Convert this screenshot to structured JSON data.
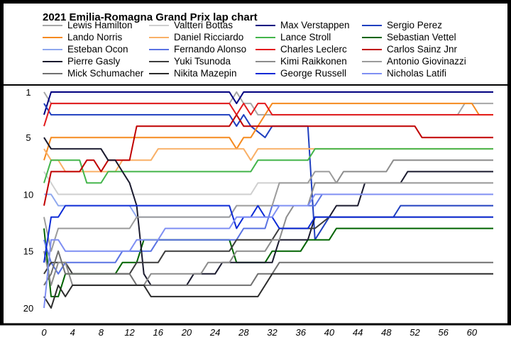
{
  "chart_data": {
    "type": "line",
    "title": "2021 Emilia-Romagna Grand Prix lap chart",
    "xlabel": "",
    "ylabel": "",
    "xlim": [
      0,
      63
    ],
    "ylim": [
      20,
      1
    ],
    "x_ticks": [
      0,
      4,
      8,
      12,
      16,
      20,
      24,
      28,
      32,
      36,
      40,
      44,
      48,
      52,
      56,
      60
    ],
    "y_ticks": [
      1,
      5,
      10,
      15,
      20
    ],
    "legend_placement": "top",
    "grid": false,
    "series": [
      {
        "name": "Lewis Hamilton",
        "color": "#a6a6a6",
        "points": [
          [
            0,
            1
          ],
          [
            1,
            2
          ],
          [
            26,
            2
          ],
          [
            27,
            1
          ],
          [
            28,
            2
          ],
          [
            29,
            2
          ],
          [
            30,
            3
          ],
          [
            58,
            3
          ],
          [
            59,
            2
          ],
          [
            63,
            2
          ]
        ]
      },
      {
        "name": "Valtteri Bottas",
        "color": "#cfcfcf",
        "points": [
          [
            0,
            8
          ],
          [
            1,
            9
          ],
          [
            2,
            10
          ],
          [
            29,
            10
          ],
          [
            30,
            9
          ],
          [
            63,
            9
          ]
        ]
      },
      {
        "name": "Max Verstappen",
        "color": "#000080",
        "points": [
          [
            0,
            3
          ],
          [
            1,
            1
          ],
          [
            26,
            1
          ],
          [
            27,
            2
          ],
          [
            28,
            1
          ],
          [
            63,
            1
          ]
        ]
      },
      {
        "name": "Sergio Perez",
        "color": "#1f3fbf",
        "points": [
          [
            0,
            2
          ],
          [
            1,
            3
          ],
          [
            26,
            3
          ],
          [
            27,
            4
          ],
          [
            28,
            3
          ],
          [
            29,
            4
          ],
          [
            31,
            5
          ],
          [
            32,
            4
          ],
          [
            37,
            4
          ],
          [
            38,
            14
          ],
          [
            40,
            12
          ],
          [
            49,
            12
          ],
          [
            50,
            11
          ],
          [
            63,
            11
          ]
        ]
      },
      {
        "name": "Lando Norris",
        "color": "#f58a1f",
        "points": [
          [
            0,
            7
          ],
          [
            1,
            5
          ],
          [
            26,
            5
          ],
          [
            27,
            6
          ],
          [
            28,
            5
          ],
          [
            29,
            5
          ],
          [
            30,
            4
          ],
          [
            31,
            3
          ],
          [
            32,
            2
          ],
          [
            60,
            2
          ],
          [
            61,
            3
          ],
          [
            63,
            3
          ]
        ]
      },
      {
        "name": "Daniel Ricciardo",
        "color": "#f9b067",
        "points": [
          [
            0,
            6
          ],
          [
            1,
            7
          ],
          [
            2,
            7
          ],
          [
            3,
            8
          ],
          [
            10,
            8
          ],
          [
            11,
            7
          ],
          [
            15,
            7
          ],
          [
            16,
            6
          ],
          [
            28,
            6
          ],
          [
            29,
            7
          ],
          [
            30,
            6
          ],
          [
            63,
            6
          ]
        ]
      },
      {
        "name": "Lance Stroll",
        "color": "#43b54a",
        "points": [
          [
            0,
            9
          ],
          [
            1,
            7
          ],
          [
            5,
            7
          ],
          [
            6,
            9
          ],
          [
            8,
            9
          ],
          [
            9,
            8
          ],
          [
            28,
            8
          ],
          [
            29,
            8
          ],
          [
            30,
            7
          ],
          [
            37,
            7
          ],
          [
            38,
            6
          ],
          [
            63,
            6
          ]
        ]
      },
      {
        "name": "Sebastian Vettel",
        "color": "#006400",
        "points": [
          [
            0,
            13
          ],
          [
            1,
            19
          ],
          [
            2,
            19
          ],
          [
            3,
            17
          ],
          [
            10,
            17
          ],
          [
            11,
            16
          ],
          [
            13,
            16
          ],
          [
            14,
            14
          ],
          [
            25,
            14
          ],
          [
            26,
            14
          ],
          [
            27,
            16
          ],
          [
            31,
            16
          ],
          [
            32,
            15
          ],
          [
            36,
            15
          ],
          [
            37,
            14
          ],
          [
            40,
            14
          ],
          [
            41,
            13
          ],
          [
            63,
            13
          ]
        ]
      },
      {
        "name": "Esteban Ocon",
        "color": "#8fa8ee",
        "points": [
          [
            0,
            10
          ],
          [
            1,
            10
          ],
          [
            2,
            11
          ],
          [
            12,
            11
          ],
          [
            13,
            12
          ],
          [
            26,
            12
          ],
          [
            27,
            11
          ],
          [
            37,
            11
          ],
          [
            38,
            10
          ],
          [
            63,
            10
          ]
        ]
      },
      {
        "name": "Fernando Alonso",
        "color": "#5a73e3",
        "points": [
          [
            0,
            14
          ],
          [
            1,
            16
          ],
          [
            2,
            17
          ],
          [
            3,
            16
          ],
          [
            10,
            16
          ],
          [
            11,
            15
          ],
          [
            14,
            15
          ],
          [
            15,
            15
          ],
          [
            16,
            14
          ],
          [
            27,
            14
          ],
          [
            28,
            13
          ],
          [
            31,
            13
          ],
          [
            32,
            11
          ],
          [
            37,
            11
          ],
          [
            38,
            11
          ],
          [
            39,
            10
          ],
          [
            63,
            10
          ]
        ]
      },
      {
        "name": "Charles Leclerc",
        "color": "#e31a1c",
        "points": [
          [
            0,
            4
          ],
          [
            1,
            2
          ],
          [
            26,
            2
          ],
          [
            27,
            3
          ],
          [
            28,
            2
          ],
          [
            29,
            3
          ],
          [
            30,
            2
          ],
          [
            31,
            2
          ],
          [
            32,
            3
          ],
          [
            63,
            3
          ]
        ]
      },
      {
        "name": "Carlos Sainz Jnr",
        "color": "#c00000",
        "points": [
          [
            0,
            11
          ],
          [
            1,
            8
          ],
          [
            5,
            8
          ],
          [
            6,
            7
          ],
          [
            7,
            7
          ],
          [
            8,
            8
          ],
          [
            9,
            7
          ],
          [
            12,
            7
          ],
          [
            13,
            4
          ],
          [
            26,
            4
          ],
          [
            27,
            3
          ],
          [
            28,
            4
          ],
          [
            52,
            4
          ],
          [
            53,
            5
          ],
          [
            63,
            5
          ]
        ]
      },
      {
        "name": "Pierre Gasly",
        "color": "#1a1a2e",
        "points": [
          [
            0,
            5
          ],
          [
            1,
            6
          ],
          [
            8,
            6
          ],
          [
            9,
            7
          ],
          [
            10,
            7
          ],
          [
            11,
            8
          ],
          [
            12,
            9
          ],
          [
            13,
            11
          ],
          [
            14,
            17
          ],
          [
            15,
            18
          ],
          [
            20,
            18
          ],
          [
            21,
            17
          ],
          [
            24,
            17
          ],
          [
            25,
            16
          ],
          [
            32,
            16
          ],
          [
            33,
            14
          ],
          [
            37,
            14
          ],
          [
            38,
            12
          ],
          [
            40,
            12
          ],
          [
            41,
            11
          ],
          [
            44,
            11
          ],
          [
            45,
            9
          ],
          [
            50,
            9
          ],
          [
            51,
            8
          ],
          [
            63,
            8
          ]
        ]
      },
      {
        "name": "Yuki Tsunoda",
        "color": "#3d3d3d",
        "points": [
          [
            0,
            17
          ],
          [
            1,
            16
          ],
          [
            3,
            16
          ],
          [
            4,
            17
          ],
          [
            12,
            17
          ],
          [
            13,
            16
          ],
          [
            16,
            16
          ],
          [
            17,
            15
          ],
          [
            25,
            15
          ],
          [
            26,
            15
          ],
          [
            27,
            14
          ],
          [
            32,
            14
          ],
          [
            33,
            13
          ],
          [
            37,
            13
          ],
          [
            38,
            13
          ],
          [
            40,
            12
          ],
          [
            63,
            12
          ]
        ]
      },
      {
        "name": "Kimi Raikkonen",
        "color": "#8c8c8c",
        "points": [
          [
            0,
            15
          ],
          [
            1,
            18
          ],
          [
            2,
            16
          ],
          [
            3,
            16
          ],
          [
            4,
            18
          ],
          [
            14,
            18
          ],
          [
            15,
            17
          ],
          [
            21,
            17
          ],
          [
            22,
            17
          ],
          [
            23,
            16
          ],
          [
            26,
            16
          ],
          [
            27,
            15
          ],
          [
            31,
            15
          ],
          [
            32,
            14
          ],
          [
            33,
            14
          ],
          [
            34,
            12
          ],
          [
            35,
            11
          ],
          [
            37,
            11
          ],
          [
            38,
            9
          ],
          [
            41,
            9
          ],
          [
            42,
            8
          ],
          [
            48,
            8
          ],
          [
            49,
            7
          ],
          [
            63,
            7
          ]
        ]
      },
      {
        "name": "Antonio Giovinazzi",
        "color": "#9b9b9b",
        "points": [
          [
            0,
            12
          ],
          [
            1,
            15
          ],
          [
            2,
            13
          ],
          [
            12,
            13
          ],
          [
            13,
            12
          ],
          [
            26,
            12
          ],
          [
            27,
            11
          ],
          [
            31,
            11
          ],
          [
            32,
            11
          ],
          [
            33,
            9
          ],
          [
            37,
            9
          ],
          [
            38,
            8
          ],
          [
            40,
            8
          ],
          [
            41,
            9
          ],
          [
            63,
            9
          ]
        ]
      },
      {
        "name": "Mick Schumacher",
        "color": "#707070",
        "points": [
          [
            0,
            18
          ],
          [
            1,
            17
          ],
          [
            2,
            15
          ],
          [
            3,
            17
          ],
          [
            12,
            17
          ],
          [
            13,
            18
          ],
          [
            29,
            18
          ],
          [
            30,
            17
          ],
          [
            32,
            17
          ],
          [
            33,
            16
          ],
          [
            63,
            16
          ]
        ]
      },
      {
        "name": "Nikita Mazepin",
        "color": "#2b2b2b",
        "points": [
          [
            0,
            19
          ],
          [
            1,
            20
          ],
          [
            2,
            18
          ],
          [
            3,
            19
          ],
          [
            4,
            18
          ],
          [
            14,
            18
          ],
          [
            15,
            19
          ],
          [
            29,
            19
          ],
          [
            30,
            19
          ],
          [
            31,
            18
          ],
          [
            32,
            17
          ],
          [
            63,
            17
          ]
        ]
      },
      {
        "name": "George Russell",
        "color": "#0b2ad6",
        "points": [
          [
            0,
            16
          ],
          [
            1,
            12
          ],
          [
            2,
            12
          ],
          [
            3,
            11
          ],
          [
            26,
            11
          ],
          [
            27,
            13
          ],
          [
            28,
            12
          ],
          [
            29,
            12
          ],
          [
            30,
            11
          ],
          [
            31,
            12
          ],
          [
            32,
            12
          ],
          [
            33,
            13
          ],
          [
            37,
            13
          ],
          [
            38,
            12
          ],
          [
            63,
            12
          ]
        ]
      },
      {
        "name": "Nicholas Latifi",
        "color": "#7f8ff3",
        "points": [
          [
            0,
            20
          ],
          [
            1,
            14
          ],
          [
            2,
            14
          ],
          [
            3,
            15
          ],
          [
            12,
            15
          ],
          [
            13,
            14
          ],
          [
            16,
            14
          ],
          [
            17,
            13
          ],
          [
            26,
            13
          ],
          [
            27,
            12
          ],
          [
            32,
            12
          ],
          [
            33,
            11
          ],
          [
            37,
            11
          ],
          [
            38,
            10
          ],
          [
            40,
            10
          ],
          [
            41,
            10
          ],
          [
            63,
            10
          ]
        ]
      }
    ]
  },
  "legend_layout_rows": 5
}
